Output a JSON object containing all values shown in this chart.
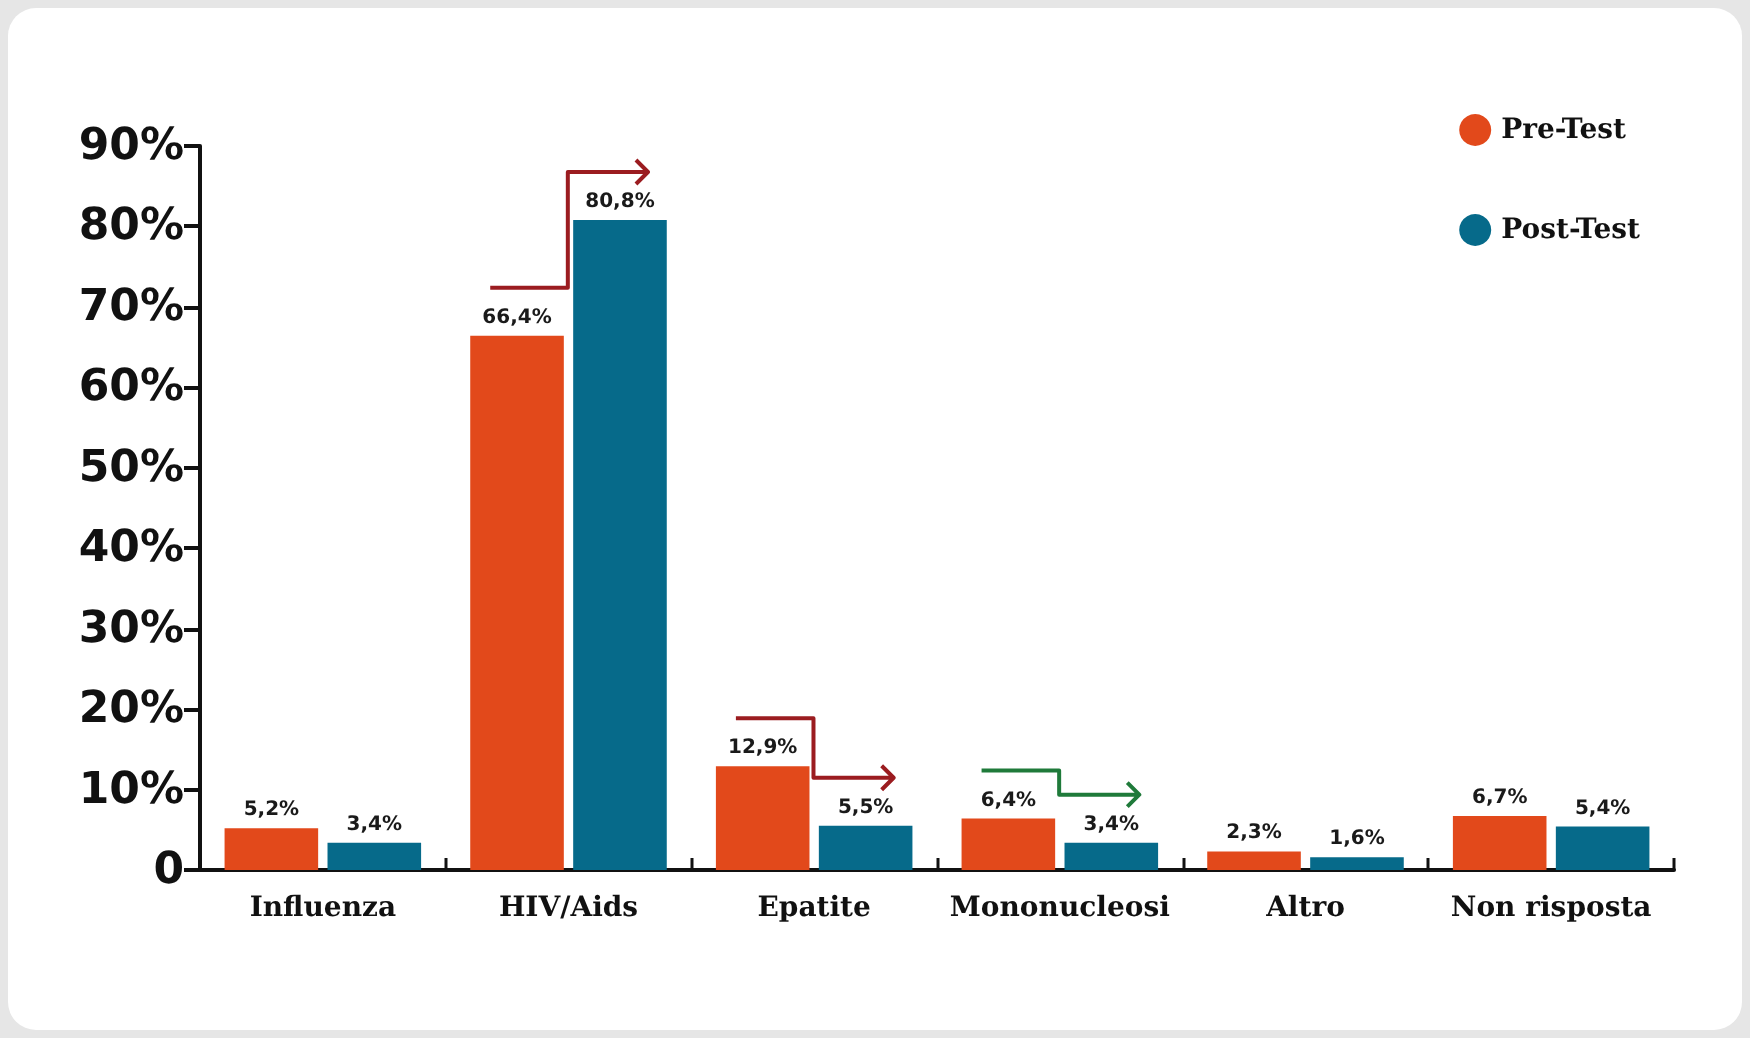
{
  "chart_data": {
    "type": "bar",
    "categories": [
      "Influenza",
      "HIV/Aids",
      "Epatite",
      "Mononucleosi",
      "Altro",
      "Non risposta"
    ],
    "series": [
      {
        "name": "Pre-Test",
        "color": "#e2491b",
        "values": [
          5.2,
          66.4,
          12.9,
          6.4,
          2.3,
          6.7
        ],
        "value_labels": [
          "5,2%",
          "66,4%",
          "12,9%",
          "6,4%",
          "2,3%",
          "6,7%"
        ]
      },
      {
        "name": "Post-Test",
        "color": "#066a8a",
        "values": [
          3.4,
          80.8,
          5.5,
          3.4,
          1.6,
          5.4
        ],
        "value_labels": [
          "3,4%",
          "80,8%",
          "5,5%",
          "3,4%",
          "1,6%",
          "5,4%"
        ]
      }
    ],
    "ylim": [
      0,
      90
    ],
    "yticks": [
      {
        "value": 0,
        "label": "0"
      },
      {
        "value": 10,
        "label": "10%"
      },
      {
        "value": 20,
        "label": "20%"
      },
      {
        "value": 30,
        "label": "30%"
      },
      {
        "value": 40,
        "label": "40%"
      },
      {
        "value": 50,
        "label": "50%"
      },
      {
        "value": 60,
        "label": "60%"
      },
      {
        "value": 70,
        "label": "70%"
      },
      {
        "value": 80,
        "label": "80%"
      },
      {
        "value": 90,
        "label": "90%"
      }
    ],
    "grid": false,
    "legend": "top right"
  }
}
